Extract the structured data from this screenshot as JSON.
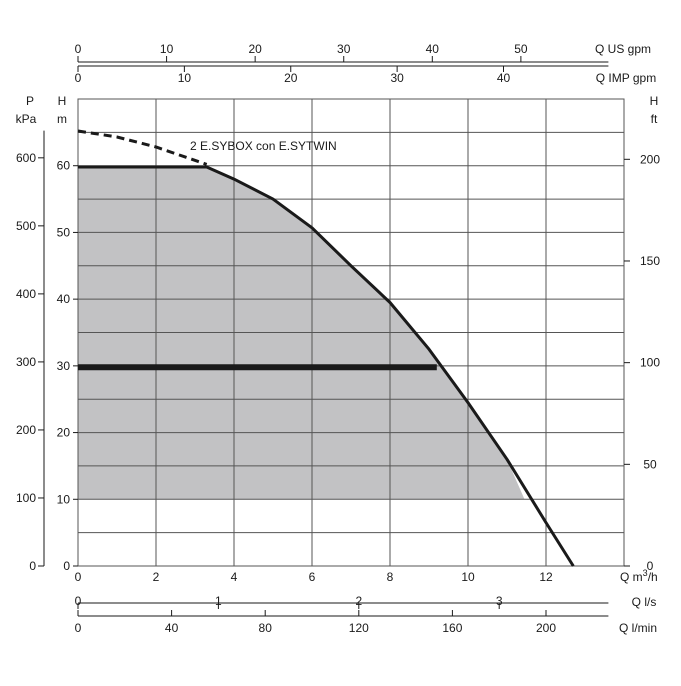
{
  "chart_data": {
    "type": "area",
    "annotation": "2 E.SYBOX con E.SYTWIN",
    "x": {
      "label": "Q m³/h",
      "label_parts": [
        "Q",
        "m",
        "3",
        "/h"
      ],
      "range": [
        0,
        14
      ],
      "ticks": [
        0,
        2,
        4,
        6,
        8,
        10,
        12
      ]
    },
    "x_ls": {
      "label": "Q l/s",
      "ticks": [
        0,
        1,
        2,
        3
      ]
    },
    "x_lmin": {
      "label": "Q l/min",
      "ticks": [
        0,
        40,
        80,
        120,
        160,
        200
      ]
    },
    "x_imp": {
      "label": "Q IMP gpm",
      "ticks": [
        0,
        10,
        20,
        30,
        40
      ]
    },
    "x_us": {
      "label": "Q US gpm",
      "ticks": [
        0,
        10,
        20,
        30,
        40,
        50
      ]
    },
    "y_m": {
      "label": [
        "H",
        "m"
      ],
      "range": [
        0,
        70
      ],
      "ticks": [
        0,
        10,
        20,
        30,
        40,
        50,
        60
      ]
    },
    "y_kpa": {
      "label": [
        "P",
        "kPa"
      ],
      "ticks": [
        0,
        100,
        200,
        300,
        400,
        500,
        600
      ]
    },
    "y_ft": {
      "label": [
        "H",
        "ft"
      ],
      "ticks": [
        0,
        50,
        100,
        150,
        200
      ]
    },
    "grid": true,
    "series": [
      {
        "kind": "dashed-curve",
        "color": "#1a1a1a",
        "points": [
          [
            0,
            65.2
          ],
          [
            1,
            64.3
          ],
          [
            2,
            62.8
          ],
          [
            3.3,
            60.2
          ]
        ]
      },
      {
        "kind": "curve",
        "color": "#1a1a1a",
        "points": [
          [
            0,
            59.8
          ],
          [
            3.3,
            59.8
          ],
          [
            4,
            58
          ],
          [
            5,
            55
          ],
          [
            6,
            50.7
          ],
          [
            7,
            45
          ],
          [
            8,
            39.5
          ],
          [
            9,
            32.5
          ],
          [
            10,
            24.5
          ],
          [
            11,
            16
          ],
          [
            12,
            6.5
          ],
          [
            12.7,
            0
          ]
        ]
      },
      {
        "kind": "thick-line",
        "color": "#1a1a1a",
        "points": [
          [
            0,
            29.8
          ],
          [
            9.2,
            29.8
          ]
        ]
      },
      {
        "kind": "area",
        "color": "#c2c2c4",
        "floor": 10,
        "points": [
          [
            0,
            59.8
          ],
          [
            3.3,
            59.8
          ],
          [
            4,
            58
          ],
          [
            5,
            55
          ],
          [
            6,
            50.7
          ],
          [
            7,
            45
          ],
          [
            8,
            39.5
          ],
          [
            9,
            32.5
          ],
          [
            10,
            24.5
          ],
          [
            11,
            16
          ],
          [
            11.45,
            10
          ]
        ]
      }
    ]
  }
}
